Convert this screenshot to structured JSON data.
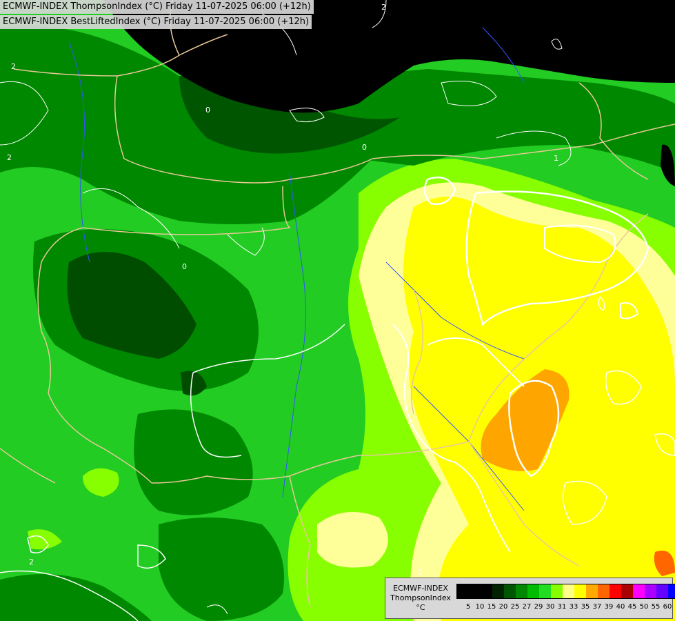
{
  "titles": {
    "line1": "ECMWF-INDEX ThompsonIndex (°C) Friday 11-07-2025 06:00 (+12h)",
    "line2": "ECMWF-INDEX BestLiftedIndex (°C) Friday 11-07-2025 06:00 (+12h)"
  },
  "legend": {
    "model": "ECMWF-INDEX",
    "variable": "ThompsonIndex",
    "unit": "°C",
    "ticks": [
      "5",
      "10",
      "15",
      "20",
      "25",
      "27",
      "29",
      "30",
      "31",
      "33",
      "35",
      "37",
      "39",
      "40",
      "45",
      "50",
      "55",
      "60"
    ],
    "colors": [
      "#000000",
      "#000000",
      "#000000",
      "#002200",
      "#005500",
      "#008800",
      "#00bb00",
      "#22dd22",
      "#88ff00",
      "#ffff88",
      "#ffff00",
      "#ffaa00",
      "#ff6600",
      "#ff0000",
      "#aa0000",
      "#ff00ff",
      "#aa00ff",
      "#6600ff",
      "#0000ff"
    ]
  },
  "contour_labels": [
    "2",
    "2",
    "0",
    "0",
    "0",
    "2",
    "1",
    "2",
    "2"
  ],
  "colors": {
    "black_zone": "#000000",
    "dark_green": "#004d00",
    "mid_green": "#008800",
    "green": "#22cc22",
    "lime": "#88ff00",
    "light_yellow": "#ffff99",
    "yellow": "#ffff00",
    "orange": "#ffa500",
    "contour": "#ffffff",
    "borders": "#e8c89a",
    "rivers": "#3355ff"
  }
}
